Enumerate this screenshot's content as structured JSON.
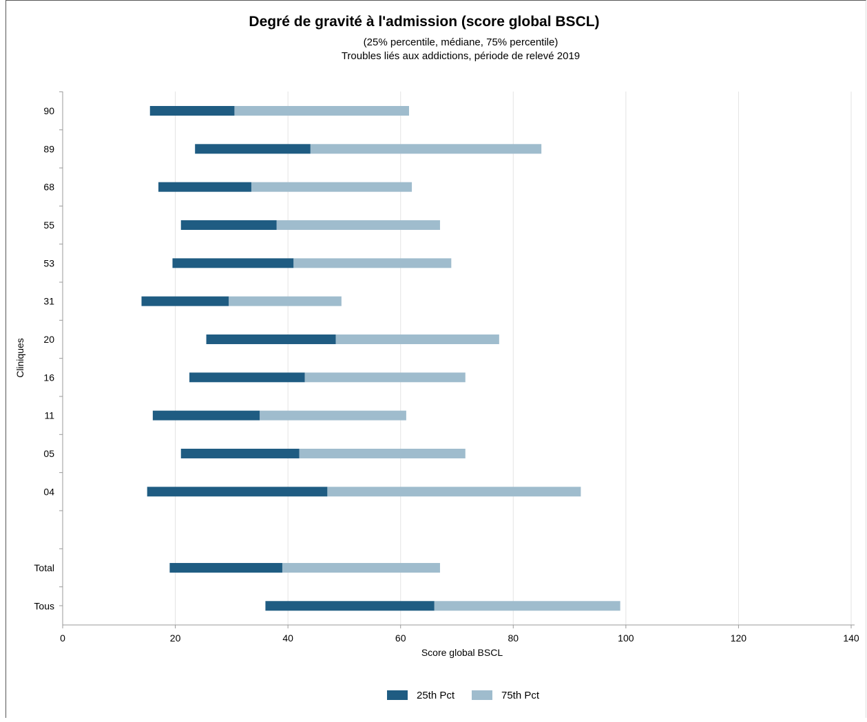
{
  "chart_data": {
    "type": "bar",
    "orientation": "horizontal",
    "stacked": true,
    "title": "Degré de gravité à l'admission (score global BSCL)",
    "subtitle_lines": [
      "(25% percentile, médiane, 75% percentile)",
      "Troubles liés aux addictions, période de relevé 2019"
    ],
    "xlabel": "Score global BSCL",
    "ylabel": "Cliniques",
    "xlim": [
      0,
      140
    ],
    "x_ticks": [
      "0",
      "20",
      "40",
      "60",
      "80",
      "100",
      "120",
      "140"
    ],
    "grid": true,
    "legend_position": "bottom",
    "colors": {
      "p25_to_median": "#1f5c82",
      "median_to_p75": "#9fbccd",
      "grid": "#e3e3e3",
      "axis": "#999999"
    },
    "categories": [
      "90",
      "89",
      "68",
      "55",
      "53",
      "31",
      "20",
      "16",
      "11",
      "05",
      "04",
      "",
      "Total",
      "Tous"
    ],
    "series": [
      {
        "name": "25th Pct",
        "role": "p25_to_median"
      },
      {
        "name": "75th Pct",
        "role": "median_to_p75"
      }
    ],
    "points": [
      {
        "label": "90",
        "p25": 15.5,
        "median": 30.5,
        "p75": 61.5
      },
      {
        "label": "89",
        "p25": 23.5,
        "median": 44.0,
        "p75": 85.0
      },
      {
        "label": "68",
        "p25": 17.0,
        "median": 33.5,
        "p75": 62.0
      },
      {
        "label": "55",
        "p25": 21.0,
        "median": 38.0,
        "p75": 67.0
      },
      {
        "label": "53",
        "p25": 19.5,
        "median": 41.0,
        "p75": 69.0
      },
      {
        "label": "31",
        "p25": 14.0,
        "median": 29.5,
        "p75": 49.5
      },
      {
        "label": "20",
        "p25": 25.5,
        "median": 48.5,
        "p75": 77.5
      },
      {
        "label": "16",
        "p25": 22.5,
        "median": 43.0,
        "p75": 71.5
      },
      {
        "label": "11",
        "p25": 16.0,
        "median": 35.0,
        "p75": 61.0
      },
      {
        "label": "05",
        "p25": 21.0,
        "median": 42.0,
        "p75": 71.5
      },
      {
        "label": "04",
        "p25": 15.0,
        "median": 47.0,
        "p75": 92.0
      },
      {
        "label": "Total",
        "p25": 19.0,
        "median": 39.0,
        "p75": 67.0
      },
      {
        "label": "Tous",
        "p25": 36.0,
        "median": 66.0,
        "p75": 99.0
      }
    ]
  }
}
